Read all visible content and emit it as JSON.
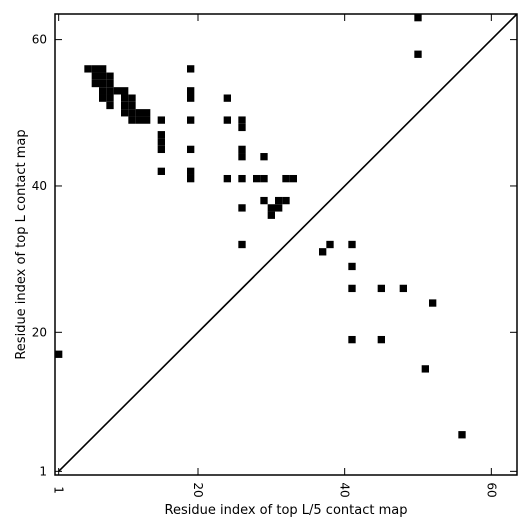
{
  "chart_data": {
    "type": "heatmap",
    "xlabel": "Residue index of top L/5 contact map",
    "ylabel": "Residue index of top L contact map",
    "xlim": [
      0.5,
      63.5
    ],
    "ylim": [
      0.5,
      63.5
    ],
    "x_ticks": [
      1,
      20,
      40,
      60
    ],
    "y_ticks": [
      1,
      20,
      40,
      60
    ],
    "diagonal": true,
    "grid": false,
    "colors": {
      "cell": "#000000",
      "background": "#ffffff",
      "line": "#000000"
    },
    "series": [
      {
        "name": "top L contact map",
        "region": "upper-left",
        "points": [
          [
            5,
            56
          ],
          [
            6,
            56
          ],
          [
            7,
            56
          ],
          [
            6,
            55
          ],
          [
            7,
            55
          ],
          [
            8,
            55
          ],
          [
            6,
            54
          ],
          [
            7,
            54
          ],
          [
            8,
            54
          ],
          [
            7,
            53
          ],
          [
            8,
            53
          ],
          [
            9,
            53
          ],
          [
            10,
            53
          ],
          [
            7,
            52
          ],
          [
            8,
            52
          ],
          [
            10,
            52
          ],
          [
            11,
            52
          ],
          [
            8,
            51
          ],
          [
            10,
            51
          ],
          [
            11,
            51
          ],
          [
            10,
            50
          ],
          [
            11,
            50
          ],
          [
            12,
            50
          ],
          [
            13,
            50
          ],
          [
            11,
            49
          ],
          [
            12,
            49
          ],
          [
            13,
            49
          ],
          [
            15,
            49
          ],
          [
            15,
            47
          ],
          [
            15,
            46
          ],
          [
            15,
            45
          ],
          [
            15,
            42
          ],
          [
            19,
            56
          ],
          [
            19,
            53
          ],
          [
            19,
            52
          ],
          [
            19,
            49
          ],
          [
            19,
            45
          ],
          [
            19,
            42
          ],
          [
            19,
            41
          ],
          [
            24,
            52
          ],
          [
            24,
            49
          ],
          [
            24,
            41
          ],
          [
            26,
            49
          ],
          [
            26,
            48
          ],
          [
            26,
            45
          ],
          [
            26,
            44
          ],
          [
            26,
            41
          ],
          [
            26,
            37
          ],
          [
            26,
            32
          ],
          [
            28,
            41
          ],
          [
            29,
            41
          ],
          [
            29,
            44
          ],
          [
            29,
            38
          ],
          [
            30,
            37
          ],
          [
            30,
            36
          ],
          [
            31,
            38
          ],
          [
            31,
            37
          ],
          [
            32,
            41
          ],
          [
            32,
            38
          ],
          [
            33,
            41
          ],
          [
            1,
            17
          ],
          [
            50,
            63
          ],
          [
            50,
            58
          ]
        ]
      },
      {
        "name": "top L/5 contact map",
        "region": "lower-right",
        "points": [
          [
            37,
            31
          ],
          [
            38,
            32
          ],
          [
            41,
            32
          ],
          [
            41,
            29
          ],
          [
            41,
            26
          ],
          [
            41,
            19
          ],
          [
            45,
            26
          ],
          [
            45,
            19
          ],
          [
            48,
            26
          ],
          [
            52,
            24
          ],
          [
            51,
            15
          ],
          [
            56,
            6
          ]
        ]
      }
    ]
  }
}
